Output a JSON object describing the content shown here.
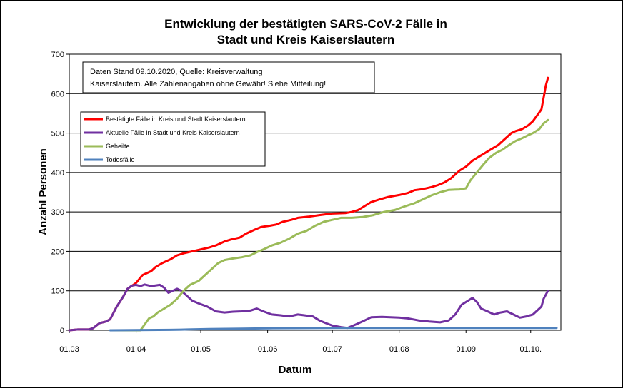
{
  "chart_data": {
    "type": "line",
    "title_lines": [
      "Entwicklung der bestätigten SARS-CoV-2 Fälle in",
      "Stadt und Kreis Kaiserslautern"
    ],
    "xlabel": "Datum",
    "ylabel": "Anzahl Personen",
    "ylim": [
      0,
      700
    ],
    "yticks": [
      0,
      100,
      200,
      300,
      400,
      500,
      600,
      700
    ],
    "xlim": [
      "2020-03-01",
      "2020-10-15"
    ],
    "xticks": [
      {
        "date": "2020-03-01",
        "label": "01.03"
      },
      {
        "date": "2020-04-01",
        "label": "01.04"
      },
      {
        "date": "2020-05-01",
        "label": "01.05"
      },
      {
        "date": "2020-06-01",
        "label": "01.06"
      },
      {
        "date": "2020-07-01",
        "label": "01.07"
      },
      {
        "date": "2020-08-01",
        "label": "01.08"
      },
      {
        "date": "2020-09-01",
        "label": "01.09"
      },
      {
        "date": "2020-10-01",
        "label": "01.10."
      }
    ],
    "grid": "horizontal",
    "legend_position": "top-left",
    "annotation_lines": [
      "Daten Stand 09.10.2020, Quelle: Kreisverwaltung",
      "Kaiserslautern. Alle Zahlenangaben ohne Gewähr! Siehe Mitteilung!"
    ],
    "series": [
      {
        "name": "Bestätigte Fälle in Kreis und Stadt Kaiserslautern",
        "color": "#ff0000",
        "points": [
          [
            "2020-03-01",
            0
          ],
          [
            "2020-03-05",
            2
          ],
          [
            "2020-03-10",
            2
          ],
          [
            "2020-03-12",
            5
          ],
          [
            "2020-03-15",
            18
          ],
          [
            "2020-03-18",
            22
          ],
          [
            "2020-03-20",
            28
          ],
          [
            "2020-03-23",
            60
          ],
          [
            "2020-03-26",
            85
          ],
          [
            "2020-03-28",
            105
          ],
          [
            "2020-04-01",
            120
          ],
          [
            "2020-04-04",
            140
          ],
          [
            "2020-04-08",
            150
          ],
          [
            "2020-04-10",
            160
          ],
          [
            "2020-04-13",
            170
          ],
          [
            "2020-04-17",
            180
          ],
          [
            "2020-04-20",
            190
          ],
          [
            "2020-04-23",
            195
          ],
          [
            "2020-04-27",
            200
          ],
          [
            "2020-05-01",
            205
          ],
          [
            "2020-05-05",
            210
          ],
          [
            "2020-05-08",
            215
          ],
          [
            "2020-05-12",
            225
          ],
          [
            "2020-05-15",
            230
          ],
          [
            "2020-05-19",
            235
          ],
          [
            "2020-05-22",
            245
          ],
          [
            "2020-05-26",
            255
          ],
          [
            "2020-05-29",
            262
          ],
          [
            "2020-06-02",
            265
          ],
          [
            "2020-06-05",
            268
          ],
          [
            "2020-06-08",
            275
          ],
          [
            "2020-06-12",
            280
          ],
          [
            "2020-06-15",
            285
          ],
          [
            "2020-06-20",
            288
          ],
          [
            "2020-06-25",
            292
          ],
          [
            "2020-07-01",
            296
          ],
          [
            "2020-07-07",
            297
          ],
          [
            "2020-07-10",
            300
          ],
          [
            "2020-07-13",
            305
          ],
          [
            "2020-07-16",
            315
          ],
          [
            "2020-07-19",
            325
          ],
          [
            "2020-07-23",
            332
          ],
          [
            "2020-07-27",
            338
          ],
          [
            "2020-08-01",
            343
          ],
          [
            "2020-08-05",
            348
          ],
          [
            "2020-08-08",
            355
          ],
          [
            "2020-08-12",
            358
          ],
          [
            "2020-08-16",
            363
          ],
          [
            "2020-08-19",
            368
          ],
          [
            "2020-08-22",
            375
          ],
          [
            "2020-08-25",
            385
          ],
          [
            "2020-08-27",
            395
          ],
          [
            "2020-08-29",
            405
          ],
          [
            "2020-09-01",
            415
          ],
          [
            "2020-09-04",
            430
          ],
          [
            "2020-09-07",
            440
          ],
          [
            "2020-09-10",
            450
          ],
          [
            "2020-09-13",
            460
          ],
          [
            "2020-09-16",
            470
          ],
          [
            "2020-09-18",
            480
          ],
          [
            "2020-09-20",
            490
          ],
          [
            "2020-09-22",
            500
          ],
          [
            "2020-09-24",
            505
          ],
          [
            "2020-09-27",
            510
          ],
          [
            "2020-09-30",
            520
          ],
          [
            "2020-10-02",
            530
          ],
          [
            "2020-10-04",
            545
          ],
          [
            "2020-10-06",
            560
          ],
          [
            "2020-10-07",
            590
          ],
          [
            "2020-10-08",
            620
          ],
          [
            "2020-10-09",
            640
          ]
        ]
      },
      {
        "name": "Aktuelle Fälle in Stadt und Kreis Kaiserslautern",
        "color": "#7030a0",
        "points": [
          [
            "2020-03-01",
            0
          ],
          [
            "2020-03-05",
            2
          ],
          [
            "2020-03-10",
            2
          ],
          [
            "2020-03-12",
            5
          ],
          [
            "2020-03-15",
            18
          ],
          [
            "2020-03-18",
            22
          ],
          [
            "2020-03-20",
            28
          ],
          [
            "2020-03-23",
            60
          ],
          [
            "2020-03-26",
            85
          ],
          [
            "2020-03-28",
            105
          ],
          [
            "2020-03-30",
            113
          ],
          [
            "2020-04-01",
            115
          ],
          [
            "2020-04-03",
            112
          ],
          [
            "2020-04-05",
            116
          ],
          [
            "2020-04-08",
            112
          ],
          [
            "2020-04-12",
            115
          ],
          [
            "2020-04-14",
            108
          ],
          [
            "2020-04-16",
            95
          ],
          [
            "2020-04-18",
            100
          ],
          [
            "2020-04-20",
            105
          ],
          [
            "2020-04-22",
            100
          ],
          [
            "2020-04-24",
            90
          ],
          [
            "2020-04-27",
            75
          ],
          [
            "2020-04-30",
            68
          ],
          [
            "2020-05-04",
            60
          ],
          [
            "2020-05-08",
            48
          ],
          [
            "2020-05-12",
            45
          ],
          [
            "2020-05-16",
            47
          ],
          [
            "2020-05-20",
            48
          ],
          [
            "2020-05-24",
            50
          ],
          [
            "2020-05-27",
            55
          ],
          [
            "2020-05-30",
            48
          ],
          [
            "2020-06-03",
            40
          ],
          [
            "2020-06-07",
            38
          ],
          [
            "2020-06-11",
            35
          ],
          [
            "2020-06-15",
            40
          ],
          [
            "2020-06-18",
            38
          ],
          [
            "2020-06-22",
            35
          ],
          [
            "2020-06-25",
            25
          ],
          [
            "2020-06-28",
            18
          ],
          [
            "2020-07-01",
            12
          ],
          [
            "2020-07-05",
            8
          ],
          [
            "2020-07-08",
            6
          ],
          [
            "2020-07-12",
            15
          ],
          [
            "2020-07-16",
            25
          ],
          [
            "2020-07-19",
            33
          ],
          [
            "2020-07-24",
            34
          ],
          [
            "2020-07-28",
            33
          ],
          [
            "2020-08-01",
            32
          ],
          [
            "2020-08-05",
            30
          ],
          [
            "2020-08-10",
            25
          ],
          [
            "2020-08-15",
            22
          ],
          [
            "2020-08-20",
            20
          ],
          [
            "2020-08-24",
            25
          ],
          [
            "2020-08-27",
            40
          ],
          [
            "2020-08-30",
            65
          ],
          [
            "2020-09-02",
            75
          ],
          [
            "2020-09-04",
            82
          ],
          [
            "2020-09-06",
            72
          ],
          [
            "2020-09-08",
            55
          ],
          [
            "2020-09-11",
            48
          ],
          [
            "2020-09-14",
            40
          ],
          [
            "2020-09-17",
            45
          ],
          [
            "2020-09-20",
            48
          ],
          [
            "2020-09-23",
            40
          ],
          [
            "2020-09-26",
            32
          ],
          [
            "2020-09-29",
            35
          ],
          [
            "2020-10-02",
            40
          ],
          [
            "2020-10-04",
            50
          ],
          [
            "2020-10-06",
            60
          ],
          [
            "2020-10-07",
            80
          ],
          [
            "2020-10-09",
            100
          ]
        ]
      },
      {
        "name": "Geheilte",
        "color": "#9bbb59",
        "points": [
          [
            "2020-03-21",
            0
          ],
          [
            "2020-04-03",
            0
          ],
          [
            "2020-04-05",
            15
          ],
          [
            "2020-04-07",
            30
          ],
          [
            "2020-04-09",
            35
          ],
          [
            "2020-04-11",
            45
          ],
          [
            "2020-04-14",
            55
          ],
          [
            "2020-04-17",
            65
          ],
          [
            "2020-04-20",
            80
          ],
          [
            "2020-04-23",
            100
          ],
          [
            "2020-04-26",
            115
          ],
          [
            "2020-04-30",
            125
          ],
          [
            "2020-05-03",
            140
          ],
          [
            "2020-05-06",
            155
          ],
          [
            "2020-05-09",
            170
          ],
          [
            "2020-05-12",
            178
          ],
          [
            "2020-05-16",
            182
          ],
          [
            "2020-05-20",
            185
          ],
          [
            "2020-05-24",
            190
          ],
          [
            "2020-05-27",
            198
          ],
          [
            "2020-05-30",
            205
          ],
          [
            "2020-06-03",
            215
          ],
          [
            "2020-06-07",
            222
          ],
          [
            "2020-06-11",
            232
          ],
          [
            "2020-06-15",
            245
          ],
          [
            "2020-06-19",
            252
          ],
          [
            "2020-06-23",
            265
          ],
          [
            "2020-06-27",
            275
          ],
          [
            "2020-07-01",
            280
          ],
          [
            "2020-07-05",
            285
          ],
          [
            "2020-07-10",
            285
          ],
          [
            "2020-07-15",
            287
          ],
          [
            "2020-07-20",
            292
          ],
          [
            "2020-07-25",
            300
          ],
          [
            "2020-07-30",
            305
          ],
          [
            "2020-08-04",
            315
          ],
          [
            "2020-08-08",
            322
          ],
          [
            "2020-08-12",
            332
          ],
          [
            "2020-08-16",
            342
          ],
          [
            "2020-08-20",
            350
          ],
          [
            "2020-08-24",
            356
          ],
          [
            "2020-08-29",
            357
          ],
          [
            "2020-09-01",
            360
          ],
          [
            "2020-09-03",
            380
          ],
          [
            "2020-09-06",
            400
          ],
          [
            "2020-09-09",
            420
          ],
          [
            "2020-09-12",
            438
          ],
          [
            "2020-09-15",
            450
          ],
          [
            "2020-09-18",
            458
          ],
          [
            "2020-09-21",
            470
          ],
          [
            "2020-09-24",
            480
          ],
          [
            "2020-09-27",
            487
          ],
          [
            "2020-09-30",
            495
          ],
          [
            "2020-10-02",
            500
          ],
          [
            "2020-10-05",
            510
          ],
          [
            "2020-10-07",
            525
          ],
          [
            "2020-10-09",
            533
          ]
        ]
      },
      {
        "name": "Todesfälle",
        "color": "#4f81bd",
        "points": [
          [
            "2020-03-20",
            0
          ],
          [
            "2020-04-17",
            1
          ],
          [
            "2020-04-25",
            2
          ],
          [
            "2020-05-05",
            3
          ],
          [
            "2020-05-20",
            4
          ],
          [
            "2020-06-01",
            5
          ],
          [
            "2020-07-01",
            6
          ],
          [
            "2020-10-13",
            6
          ]
        ]
      }
    ]
  }
}
